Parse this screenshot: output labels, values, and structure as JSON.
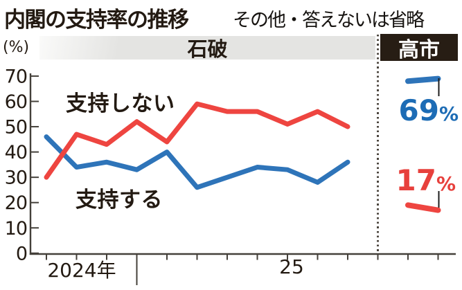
{
  "header": {
    "title": "内閣の支持率の推移",
    "subtitle": "その他・答えないは省略",
    "eras": [
      {
        "label": "石破"
      },
      {
        "label": "高市"
      }
    ]
  },
  "colors": {
    "ink": "#231a12",
    "axis": "#44403a",
    "approve": "#2e74b9",
    "disapprove": "#ee4540",
    "approve_label": "#1d6cb5",
    "disapprove_label": "#e7403c",
    "band": "#e4e4e2",
    "band_edge": "#fafaf9",
    "takaichi_bg": "#271d14",
    "takaichi_fg": "#ffffff",
    "dotted": "#4c463f",
    "pointer": "#1c1c1c"
  },
  "chart_data": {
    "type": "line",
    "title": "内閣の支持率の推移",
    "note": "その他・答えないは省略",
    "ylabel": "(%)",
    "ylim": [
      0,
      70
    ],
    "yticks": [
      0,
      10,
      20,
      30,
      40,
      50,
      60,
      70
    ],
    "grid": false,
    "x_axis": {
      "year_labels": [
        "2024年",
        "25"
      ]
    },
    "series": [
      {
        "name": "支持する",
        "color": "#2e74b9",
        "values": [
          46,
          34,
          36,
          33,
          40,
          26,
          30,
          34,
          33,
          28,
          36
        ]
      },
      {
        "name": "支持しない",
        "color": "#ee4540",
        "values": [
          30,
          47,
          43,
          52,
          44,
          59,
          56,
          56,
          51,
          56,
          50
        ]
      }
    ],
    "takaichi_series": [
      {
        "name": "支持する",
        "color": "#2e74b9",
        "values": [
          68,
          69
        ],
        "latest_label": "69%"
      },
      {
        "name": "支持しない",
        "color": "#ee4540",
        "values": [
          19,
          17
        ],
        "latest_label": "17%"
      }
    ]
  },
  "callouts": {
    "approve": {
      "value": "69",
      "unit": "%"
    },
    "disapprove": {
      "value": "17",
      "unit": "%"
    }
  }
}
